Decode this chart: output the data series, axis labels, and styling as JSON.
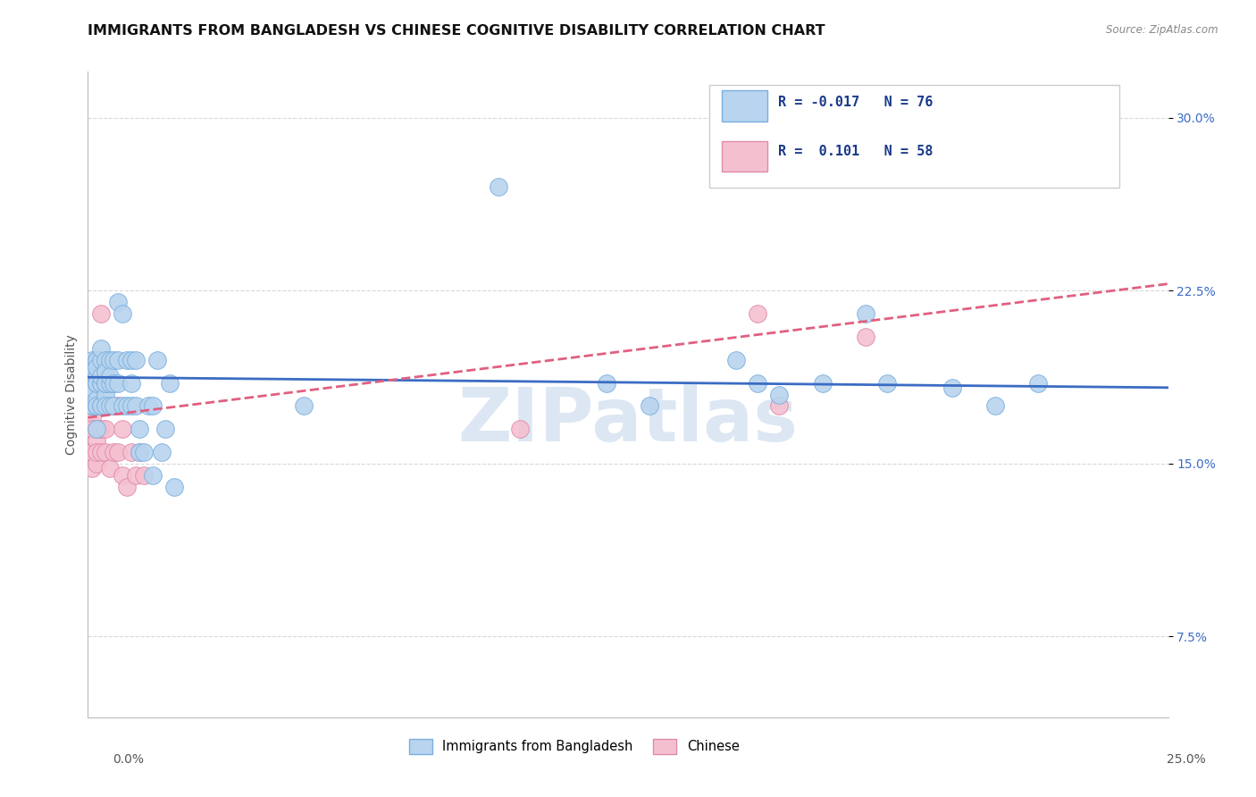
{
  "title": "IMMIGRANTS FROM BANGLADESH VS CHINESE COGNITIVE DISABILITY CORRELATION CHART",
  "source_text": "Source: ZipAtlas.com",
  "ylabel": "Cognitive Disability",
  "xlabel_bottom_left": "0.0%",
  "xlabel_bottom_right": "25.0%",
  "series": [
    {
      "name": "Immigrants from Bangladesh",
      "color": "#b8d4ee",
      "edge_color": "#7aafe0",
      "R": -0.017,
      "N": 76,
      "line_color": "#3b6cc4",
      "line_style": "solid",
      "x": [
        0.0,
        0.001,
        0.001,
        0.001,
        0.001,
        0.001,
        0.001,
        0.001,
        0.001,
        0.001,
        0.002,
        0.002,
        0.002,
        0.002,
        0.002,
        0.002,
        0.002,
        0.002,
        0.002,
        0.002,
        0.003,
        0.003,
        0.003,
        0.003,
        0.003,
        0.003,
        0.003,
        0.004,
        0.004,
        0.004,
        0.004,
        0.004,
        0.004,
        0.005,
        0.005,
        0.005,
        0.005,
        0.006,
        0.006,
        0.006,
        0.007,
        0.007,
        0.007,
        0.008,
        0.008,
        0.009,
        0.009,
        0.01,
        0.01,
        0.01,
        0.011,
        0.011,
        0.012,
        0.012,
        0.013,
        0.014,
        0.015,
        0.015,
        0.016,
        0.017,
        0.018,
        0.019,
        0.02,
        0.05,
        0.095,
        0.12,
        0.13,
        0.15,
        0.155,
        0.16,
        0.17,
        0.18,
        0.185,
        0.2,
        0.21,
        0.22
      ],
      "y": [
        0.185,
        0.175,
        0.195,
        0.185,
        0.18,
        0.192,
        0.188,
        0.175,
        0.183,
        0.19,
        0.175,
        0.195,
        0.185,
        0.165,
        0.178,
        0.188,
        0.195,
        0.175,
        0.185,
        0.192,
        0.185,
        0.175,
        0.195,
        0.2,
        0.185,
        0.175,
        0.188,
        0.18,
        0.195,
        0.185,
        0.175,
        0.19,
        0.185,
        0.185,
        0.195,
        0.175,
        0.188,
        0.195,
        0.185,
        0.175,
        0.22,
        0.195,
        0.185,
        0.215,
        0.175,
        0.195,
        0.175,
        0.195,
        0.175,
        0.185,
        0.195,
        0.175,
        0.155,
        0.165,
        0.155,
        0.175,
        0.175,
        0.145,
        0.195,
        0.155,
        0.165,
        0.185,
        0.14,
        0.175,
        0.27,
        0.185,
        0.175,
        0.195,
        0.185,
        0.18,
        0.185,
        0.215,
        0.185,
        0.183,
        0.175,
        0.185
      ]
    },
    {
      "name": "Chinese",
      "color": "#f4c0d0",
      "edge_color": "#e08aaa",
      "R": 0.101,
      "N": 58,
      "line_color": "#e06080",
      "line_style": "dashed",
      "x": [
        0.0,
        0.0,
        0.0,
        0.0,
        0.0,
        0.0,
        0.001,
        0.001,
        0.001,
        0.001,
        0.001,
        0.001,
        0.001,
        0.001,
        0.001,
        0.001,
        0.001,
        0.001,
        0.002,
        0.002,
        0.002,
        0.002,
        0.002,
        0.002,
        0.002,
        0.002,
        0.002,
        0.003,
        0.003,
        0.003,
        0.003,
        0.003,
        0.003,
        0.003,
        0.004,
        0.004,
        0.004,
        0.004,
        0.004,
        0.005,
        0.005,
        0.005,
        0.006,
        0.006,
        0.006,
        0.007,
        0.007,
        0.008,
        0.008,
        0.009,
        0.01,
        0.011,
        0.012,
        0.013,
        0.1,
        0.155,
        0.16,
        0.18
      ],
      "y": [
        0.19,
        0.175,
        0.185,
        0.165,
        0.178,
        0.155,
        0.18,
        0.185,
        0.165,
        0.175,
        0.155,
        0.17,
        0.185,
        0.175,
        0.155,
        0.165,
        0.175,
        0.148,
        0.195,
        0.175,
        0.16,
        0.185,
        0.175,
        0.15,
        0.165,
        0.178,
        0.155,
        0.215,
        0.185,
        0.175,
        0.155,
        0.175,
        0.165,
        0.185,
        0.185,
        0.175,
        0.155,
        0.165,
        0.175,
        0.185,
        0.175,
        0.148,
        0.175,
        0.155,
        0.185,
        0.155,
        0.175,
        0.165,
        0.145,
        0.14,
        0.155,
        0.145,
        0.155,
        0.145,
        0.165,
        0.215,
        0.175,
        0.205
      ]
    }
  ],
  "trend_lines": [
    {
      "x_start": 0.0,
      "y_start": 0.1875,
      "x_end": 0.25,
      "y_end": 0.183
    },
    {
      "x_start": 0.0,
      "y_start": 0.17,
      "x_end": 0.25,
      "y_end": 0.228
    }
  ],
  "xlim": [
    0.0,
    0.25
  ],
  "ylim": [
    0.04,
    0.32
  ],
  "yticks": [
    0.075,
    0.15,
    0.225,
    0.3
  ],
  "ytick_labels": [
    "7.5%",
    "15.0%",
    "22.5%",
    "30.0%"
  ],
  "grid_color": "#d8d8d8",
  "background_color": "#ffffff",
  "watermark_text": "ZIPatlas",
  "watermark_color": "#c5d8ec",
  "legend_color": "#1a3a8a",
  "title_color": "#111111",
  "title_fontsize": 11.5,
  "axis_label_fontsize": 10,
  "tick_fontsize": 10
}
